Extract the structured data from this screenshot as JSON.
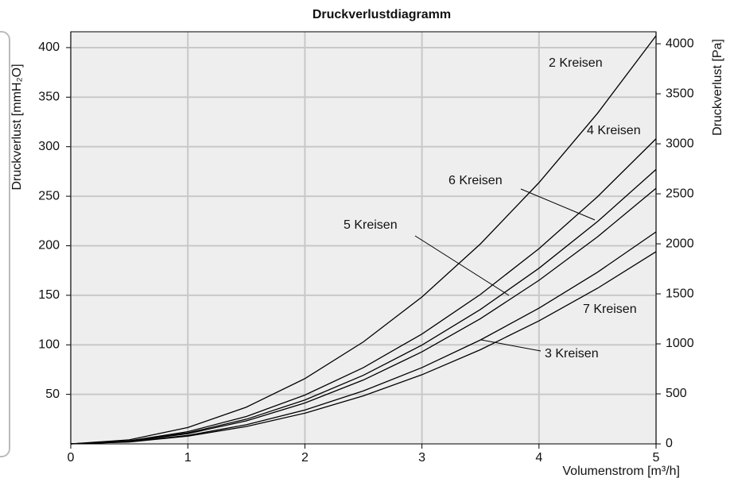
{
  "chart_data": {
    "type": "line",
    "title": "Druckverlustdiagramm",
    "x_label": "Volumenstrom [m³/h]",
    "y_label": "Druckverlust [mmH₂O]",
    "y2_label": "Druckverlust [Pa]",
    "x": [
      0,
      0.5,
      1,
      1.5,
      2,
      2.5,
      3,
      3.5,
      4,
      4.5,
      5
    ],
    "series": [
      {
        "name": "2 Kreisen",
        "color": "#000000",
        "values": [
          0,
          4.1,
          16.5,
          37.1,
          65.9,
          103,
          148.3,
          201.9,
          263.7,
          333.7,
          412
        ]
      },
      {
        "name": "4 Kreisen",
        "color": "#000000",
        "values": [
          0,
          3.1,
          12.3,
          27.7,
          49.3,
          77,
          110.9,
          150.9,
          197.1,
          249.5,
          308
        ]
      },
      {
        "name": "6 Kreisen",
        "color": "#000000",
        "values": [
          0,
          2.8,
          11.1,
          24.9,
          44.3,
          69.3,
          99.7,
          135.7,
          177.3,
          224.4,
          277
        ]
      },
      {
        "name": "5 Kreisen",
        "color": "#000000",
        "values": [
          0,
          2.6,
          10.3,
          23.2,
          41.3,
          64.5,
          92.9,
          126.4,
          165.1,
          209,
          258
        ]
      },
      {
        "name": "3 Kreisen",
        "color": "#000000",
        "values": [
          0,
          2.1,
          8.6,
          19.3,
          34.2,
          53.5,
          77,
          104.9,
          137,
          173.3,
          214
        ]
      },
      {
        "name": "7 Kreisen",
        "color": "#000000",
        "values": [
          0,
          1.9,
          7.8,
          17.5,
          31,
          48.5,
          69.8,
          95.1,
          124.2,
          157.1,
          194
        ]
      }
    ],
    "xlim": [
      0,
      5
    ],
    "xticks": [
      0,
      1,
      2,
      3,
      4,
      5
    ],
    "ylim": [
      0,
      416
    ],
    "yticks": [
      50,
      100,
      150,
      200,
      250,
      300,
      350,
      400
    ],
    "y2lim": [
      0,
      4120
    ],
    "y2ticks": [
      0,
      500,
      1000,
      1500,
      2000,
      2500,
      3000,
      3500,
      4000
    ],
    "grid": true
  }
}
